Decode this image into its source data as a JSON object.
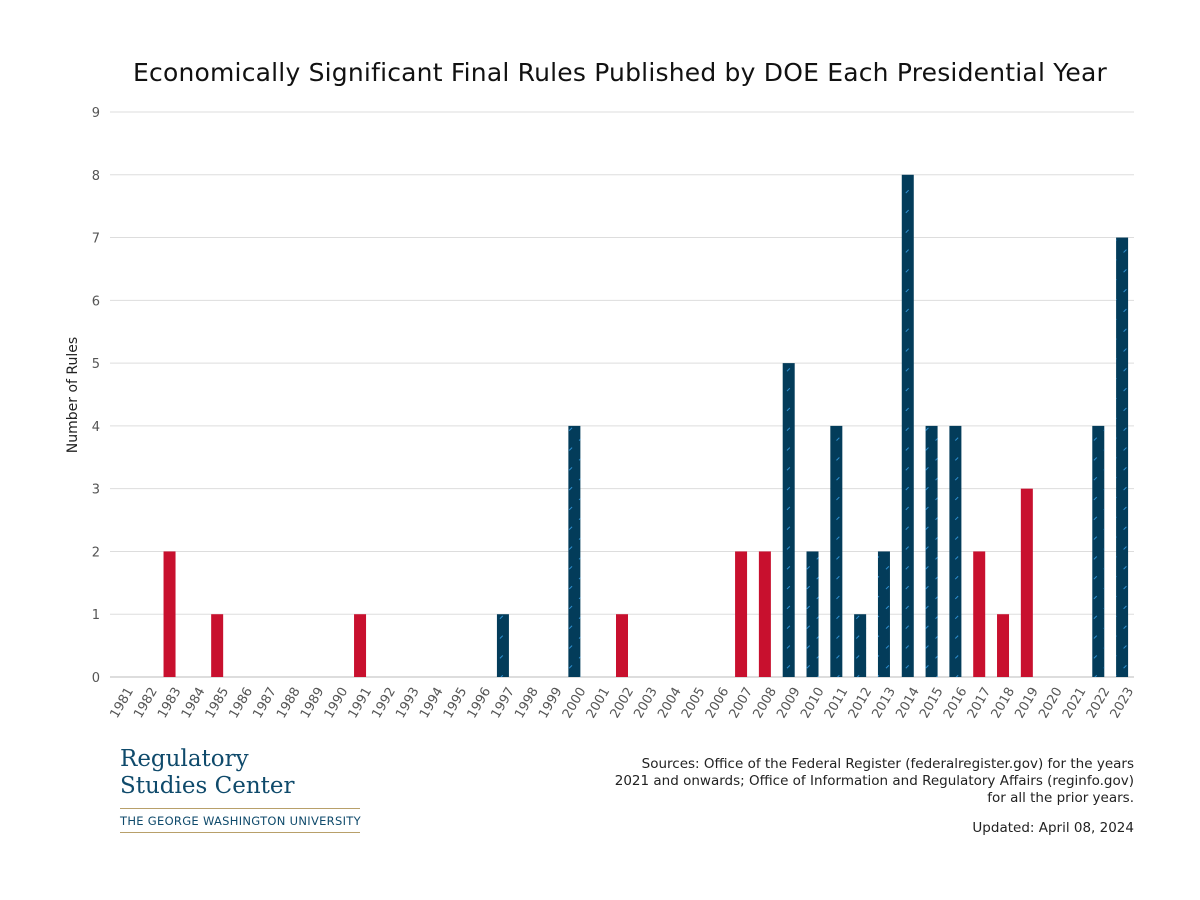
{
  "chart_data": {
    "type": "bar",
    "title": "Economically Significant Final Rules Published by DOE Each Presidential Year",
    "ylabel": "Number of Rules",
    "xlabel": "",
    "ylim": [
      0,
      9
    ],
    "yticks": [
      0,
      1,
      2,
      3,
      4,
      5,
      6,
      7,
      8,
      9
    ],
    "grid": true,
    "categories": [
      "1981",
      "1982",
      "1983",
      "1984",
      "1985",
      "1986",
      "1987",
      "1988",
      "1989",
      "1990",
      "1991",
      "1992",
      "1993",
      "1994",
      "1995",
      "1996",
      "1997",
      "1998",
      "1999",
      "2000",
      "2001",
      "2002",
      "2003",
      "2004",
      "2005",
      "2006",
      "2007",
      "2008",
      "2009",
      "2010",
      "2011",
      "2012",
      "2013",
      "2014",
      "2015",
      "2016",
      "2017",
      "2018",
      "2019",
      "2020",
      "2021",
      "2022",
      "2023"
    ],
    "values": [
      0,
      0,
      2,
      0,
      1,
      0,
      0,
      0,
      0,
      0,
      1,
      0,
      0,
      0,
      0,
      0,
      1,
      0,
      0,
      4,
      0,
      1,
      0,
      0,
      0,
      0,
      2,
      2,
      5,
      2,
      4,
      1,
      2,
      8,
      4,
      4,
      2,
      1,
      3,
      0,
      0,
      4,
      7
    ],
    "party": [
      "R",
      "R",
      "R",
      "R",
      "R",
      "R",
      "R",
      "R",
      "R",
      "R",
      "R",
      "R",
      "D",
      "D",
      "D",
      "D",
      "D",
      "D",
      "D",
      "D",
      "R",
      "R",
      "R",
      "R",
      "R",
      "R",
      "R",
      "R",
      "D",
      "D",
      "D",
      "D",
      "D",
      "D",
      "D",
      "D",
      "R",
      "R",
      "R",
      "R",
      "D",
      "D",
      "D"
    ],
    "colors": {
      "R": "#c8102e",
      "D": "#033c5a",
      "hatch": "#2e8fd0",
      "grid": "#dddddd"
    }
  },
  "logo": {
    "line1": "Regulatory",
    "line2": "Studies Center",
    "university": "THE GEORGE WASHINGTON UNIVERSITY"
  },
  "footer": {
    "sources": "Sources: Office of the Federal Register (federalregister.gov) for the years 2021 and onwards; Office of Information and Regulatory Affairs (reginfo.gov) for all the prior years.",
    "updated": "Updated: April 08, 2024"
  }
}
